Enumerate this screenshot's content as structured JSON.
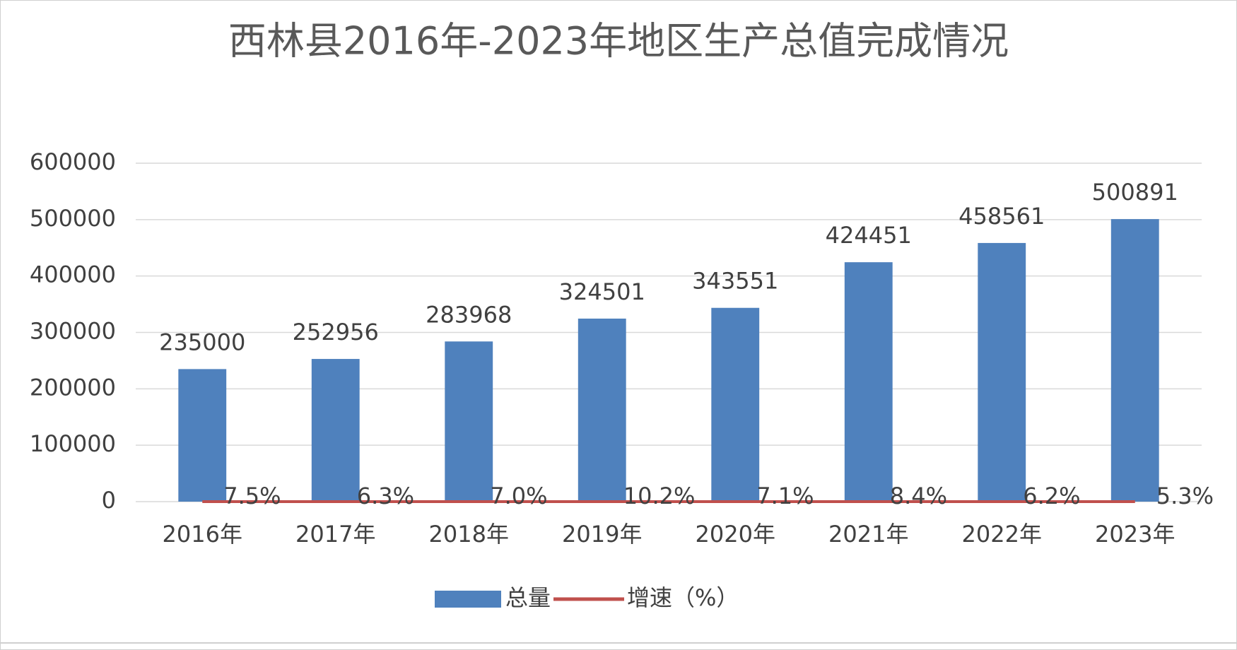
{
  "chart_data": {
    "type": "bar",
    "title": "西林县2016年-2023年地区生产总值完成情况",
    "categories": [
      "2016年",
      "2017年",
      "2018年",
      "2019年",
      "2020年",
      "2021年",
      "2022年",
      "2023年"
    ],
    "series": [
      {
        "name": "总量",
        "type": "bar",
        "color": "#4f81bd",
        "values": [
          235000,
          252956,
          283968,
          324501,
          343551,
          424451,
          458561,
          500891
        ]
      },
      {
        "name": "增速（%）",
        "type": "line",
        "color": "#c0504d",
        "values": [
          7.5,
          6.3,
          7.0,
          10.2,
          7.1,
          8.4,
          6.2,
          5.3
        ],
        "value_labels": [
          "7.5%",
          "6.3%",
          "7.0%",
          "10.2%",
          "7.1%",
          "8.4%",
          "6.2%",
          "5.3%"
        ]
      }
    ],
    "ylim": [
      0,
      600000
    ],
    "yticks": [
      0,
      100000,
      200000,
      300000,
      400000,
      500000,
      600000
    ],
    "grid": true,
    "legend": "bottom"
  }
}
